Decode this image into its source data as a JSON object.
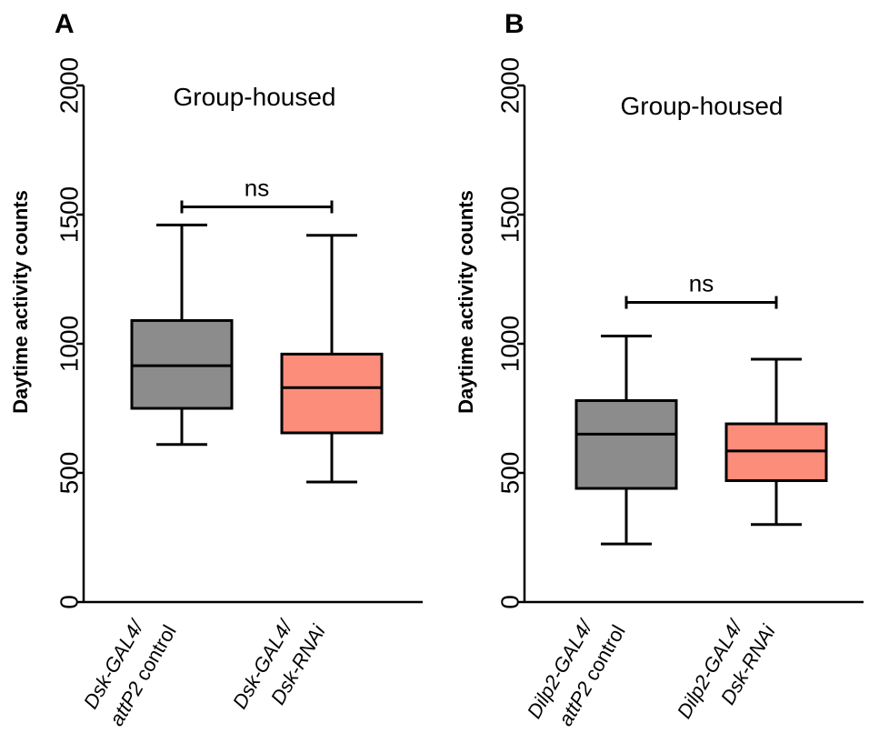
{
  "chart_data": [
    {
      "panel": "A",
      "type": "box",
      "title": "Group-housed",
      "ylabel": "Daytime activity counts",
      "ylim": [
        0,
        2000
      ],
      "yticks": [
        "0",
        "500",
        "1000",
        "1500",
        "2000"
      ],
      "categories": [
        {
          "line1": "Dsk-GAL4/",
          "line2": "attP2 control"
        },
        {
          "line1": "Dsk-GAL4/",
          "line2": "Dsk-RNAi"
        }
      ],
      "boxes": [
        {
          "min": 610,
          "q1": 750,
          "median": 915,
          "q3": 1090,
          "max": 1460,
          "color": "#8c8c8c"
        },
        {
          "min": 465,
          "q1": 655,
          "median": 830,
          "q3": 960,
          "max": 1420,
          "color": "#fc8d7a"
        }
      ],
      "significance": {
        "label": "ns",
        "level": 1530
      }
    },
    {
      "panel": "B",
      "type": "box",
      "title": "Group-housed",
      "ylabel": "Daytime activity counts",
      "ylim": [
        0,
        2000
      ],
      "yticks": [
        "0",
        "500",
        "1000",
        "1500",
        "2000"
      ],
      "categories": [
        {
          "line1": "Dilp2-GAL4/",
          "line2": "attP2 control"
        },
        {
          "line1": "Dilp2-GAL4/",
          "line2": "Dsk-RNAi"
        }
      ],
      "boxes": [
        {
          "min": 225,
          "q1": 440,
          "median": 650,
          "q3": 780,
          "max": 1030,
          "color": "#8c8c8c"
        },
        {
          "min": 300,
          "q1": 470,
          "median": 585,
          "q3": 690,
          "max": 940,
          "color": "#fc8d7a"
        }
      ],
      "significance": {
        "label": "ns",
        "level": 1160
      }
    }
  ]
}
